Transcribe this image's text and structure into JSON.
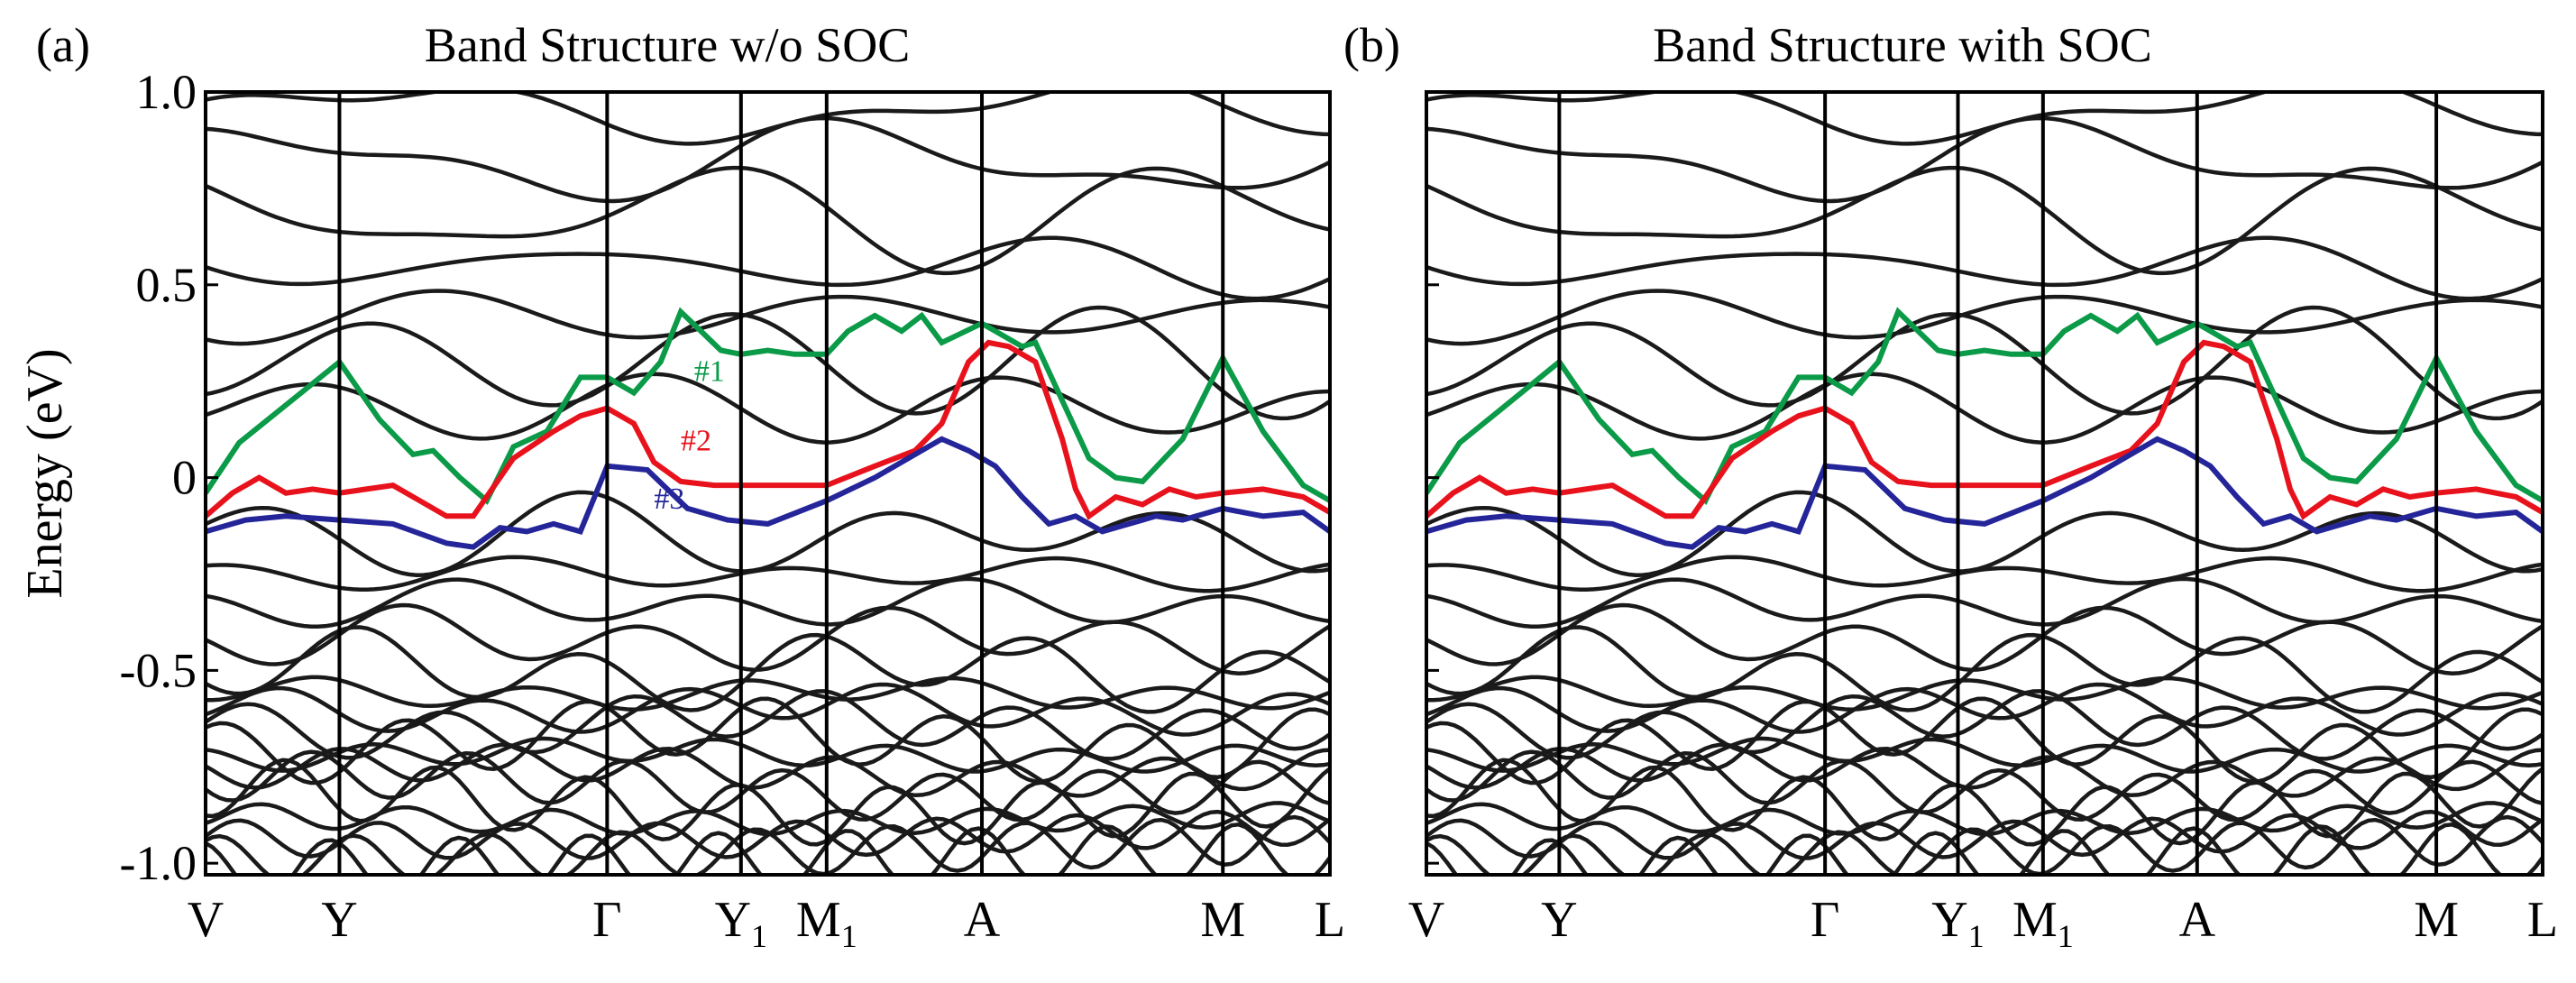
{
  "figure": {
    "ylabel": "Energy (eV)"
  },
  "chart_data": [
    {
      "type": "line",
      "panel_label": "(a)",
      "title": "Band Structure w/o SOC",
      "xlabel": "",
      "ylabel": "Energy (eV)",
      "ylim": [
        -1.03,
        1.0
      ],
      "yticks": [
        {
          "value": 1.0,
          "label": "1.0"
        },
        {
          "value": 0.5,
          "label": "0.5"
        },
        {
          "value": 0.0,
          "label": "0"
        },
        {
          "value": -0.5,
          "label": "-0.5"
        },
        {
          "value": -1.0,
          "label": "-1.0"
        }
      ],
      "kpoints": [
        {
          "name": "V",
          "sub": "",
          "k": 0
        },
        {
          "name": "Y",
          "sub": "",
          "k": 1
        },
        {
          "name": "Γ",
          "sub": "",
          "k": 3
        },
        {
          "name": "Y",
          "sub": "1",
          "k": 4
        },
        {
          "name": "M",
          "sub": "1",
          "k": 4.64
        },
        {
          "name": "A",
          "sub": "",
          "k": 5.8
        },
        {
          "name": "M",
          "sub": "",
          "k": 7.6
        },
        {
          "name": "L",
          "sub": "",
          "k": 8.4
        }
      ],
      "highlighted_bands": [
        {
          "name": "#1",
          "color": "#0a9a48",
          "k": [
            0,
            0.25,
            1,
            1.3,
            1.55,
            1.7,
            1.9,
            2.1,
            2.3,
            2.55,
            2.8,
            3.0,
            3.2,
            3.4,
            3.55,
            3.7,
            3.85,
            4.0,
            4.2,
            4.4,
            4.64,
            4.8,
            5.0,
            5.2,
            5.35,
            5.5,
            5.8,
            6.0,
            6.1,
            6.2,
            6.4,
            6.6,
            6.8,
            7.0,
            7.3,
            7.6,
            7.9,
            8.2,
            8.4
          ],
          "E": [
            -0.04,
            0.09,
            0.3,
            0.15,
            0.06,
            0.07,
            0.0,
            -0.06,
            0.08,
            0.12,
            0.26,
            0.26,
            0.22,
            0.3,
            0.43,
            0.38,
            0.33,
            0.32,
            0.33,
            0.32,
            0.32,
            0.38,
            0.42,
            0.38,
            0.42,
            0.35,
            0.4,
            0.36,
            0.34,
            0.35,
            0.2,
            0.05,
            0.0,
            -0.01,
            0.1,
            0.31,
            0.12,
            -0.02,
            -0.06
          ]
        },
        {
          "name": "#2",
          "color": "#e8121c",
          "k": [
            0,
            0.2,
            0.4,
            0.6,
            0.8,
            1.0,
            1.2,
            1.4,
            1.6,
            1.8,
            2.0,
            2.3,
            2.6,
            2.8,
            3.0,
            3.2,
            3.35,
            3.55,
            3.8,
            4.2,
            4.64,
            5.0,
            5.3,
            5.5,
            5.7,
            5.85,
            6.0,
            6.2,
            6.4,
            6.5,
            6.6,
            6.8,
            7.0,
            7.2,
            7.4,
            7.6,
            7.9,
            8.2,
            8.4
          ],
          "E": [
            -0.1,
            -0.04,
            0.0,
            -0.04,
            -0.03,
            -0.04,
            -0.03,
            -0.02,
            -0.06,
            -0.1,
            -0.1,
            0.05,
            0.12,
            0.16,
            0.18,
            0.14,
            0.04,
            -0.01,
            -0.02,
            -0.02,
            -0.02,
            0.03,
            0.07,
            0.14,
            0.3,
            0.35,
            0.34,
            0.3,
            0.1,
            -0.03,
            -0.1,
            -0.05,
            -0.07,
            -0.03,
            -0.05,
            -0.04,
            -0.03,
            -0.05,
            -0.09
          ]
        },
        {
          "name": "#3",
          "color": "#25259a",
          "k": [
            0,
            0.3,
            0.6,
            1.0,
            1.4,
            1.8,
            2.0,
            2.2,
            2.4,
            2.6,
            2.8,
            3.0,
            3.3,
            3.6,
            3.9,
            4.2,
            4.64,
            5.0,
            5.3,
            5.5,
            5.7,
            5.9,
            6.1,
            6.3,
            6.5,
            6.7,
            6.9,
            7.1,
            7.3,
            7.6,
            7.9,
            8.2,
            8.4
          ],
          "E": [
            -0.14,
            -0.11,
            -0.1,
            -0.11,
            -0.12,
            -0.17,
            -0.18,
            -0.13,
            -0.14,
            -0.12,
            -0.14,
            0.03,
            0.02,
            -0.08,
            -0.11,
            -0.12,
            -0.06,
            0.0,
            0.06,
            0.1,
            0.07,
            0.03,
            -0.05,
            -0.12,
            -0.1,
            -0.14,
            -0.12,
            -0.1,
            -0.11,
            -0.08,
            -0.1,
            -0.09,
            -0.14
          ]
        }
      ],
      "background_bands_E": [
        0.95,
        0.82,
        0.68,
        0.55,
        0.42,
        0.3,
        0.18,
        -0.15,
        -0.25,
        -0.33,
        -0.42,
        -0.5,
        -0.56,
        -0.6,
        -0.64,
        -0.68,
        -0.72,
        -0.76,
        -0.8,
        -0.84,
        -0.88,
        -0.92,
        -0.96,
        -1.0
      ]
    },
    {
      "type": "line",
      "panel_label": "(b)",
      "title": "Band Structure with SOC",
      "xlabel": "",
      "ylabel": "",
      "ylim": [
        -1.03,
        1.0
      ],
      "kpoints": [
        {
          "name": "V",
          "sub": "",
          "k": 0
        },
        {
          "name": "Y",
          "sub": "",
          "k": 1
        },
        {
          "name": "Γ",
          "sub": "",
          "k": 3
        },
        {
          "name": "Y",
          "sub": "1",
          "k": 4
        },
        {
          "name": "M",
          "sub": "1",
          "k": 4.64
        },
        {
          "name": "A",
          "sub": "",
          "k": 5.8
        },
        {
          "name": "M",
          "sub": "",
          "k": 7.6
        },
        {
          "name": "L",
          "sub": "",
          "k": 8.4
        }
      ],
      "highlighted_bands": "same as panel (a)"
    }
  ]
}
